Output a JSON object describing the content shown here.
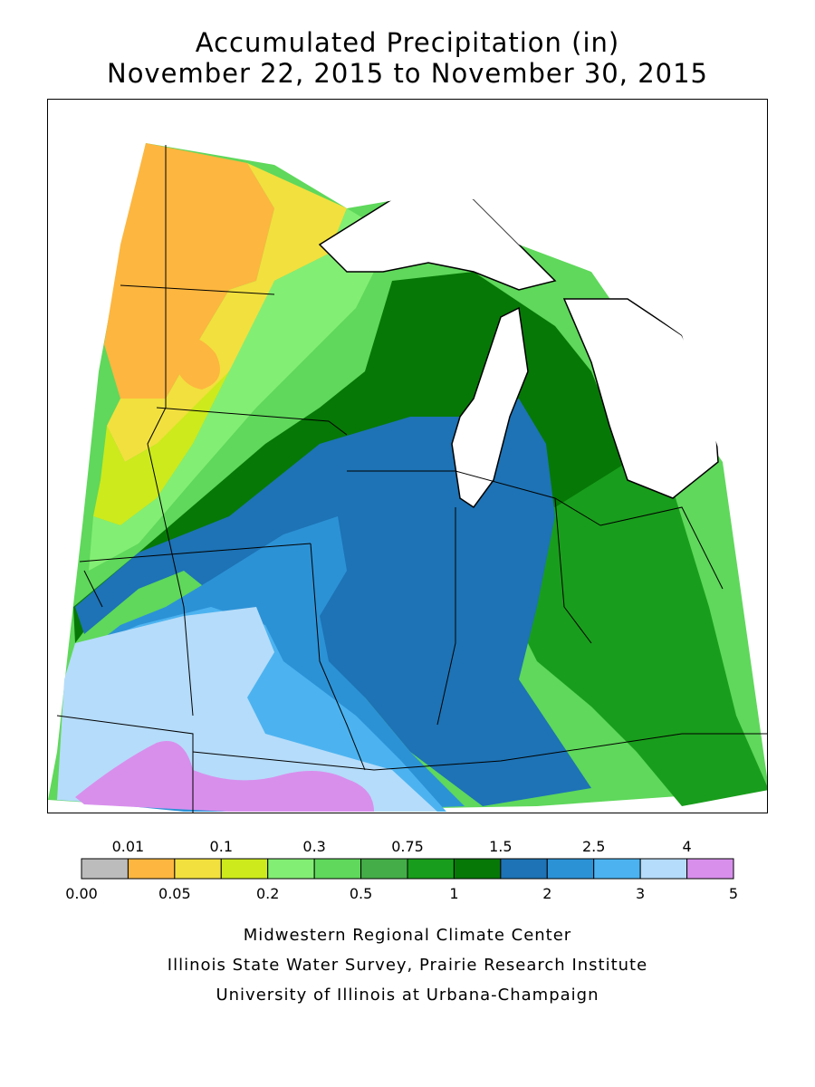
{
  "header": {
    "title_line1": "Accumulated Precipitation (in)",
    "title_line2": "November 22, 2015 to November 30, 2015"
  },
  "legend": {
    "top_labels": [
      "0.01",
      "0.1",
      "0.3",
      "0.75",
      "1.5",
      "2.5",
      "4"
    ],
    "bottom_labels": [
      "0.00",
      "0.05",
      "0.2",
      "0.5",
      "1",
      "2",
      "3",
      "5"
    ],
    "colors": [
      "#bcbcbc",
      "#fdb63f",
      "#f2e03e",
      "#cdea1c",
      "#83ee74",
      "#5fd85b",
      "#44ad48",
      "#199d1c",
      "#067806",
      "#1d73b5",
      "#2c92d6",
      "#4cb3f0",
      "#b5dcfa",
      "#d88fec"
    ]
  },
  "footer": {
    "line1": "Midwestern Regional Climate Center",
    "line2": "Illinois State Water Survey, Prairie Research Institute",
    "line3": "University of Illinois at Urbana-Champaign"
  }
}
